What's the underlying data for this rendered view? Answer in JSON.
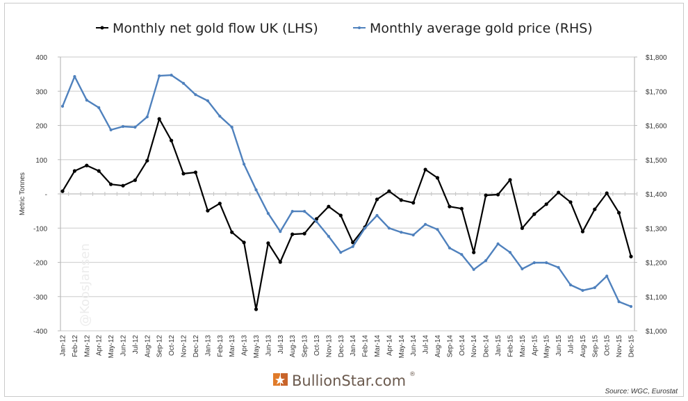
{
  "chart_data": {
    "type": "line",
    "title": "",
    "legend": [
      "Monthly net gold flow UK (LHS)",
      "Monthly average gold price (RHS)"
    ],
    "legend_position": "top",
    "ylabel": "Metric Tonnes",
    "xlabel": "",
    "ylim": [
      -400,
      400
    ],
    "y2lim": [
      1000,
      1800
    ],
    "yticks": [
      "400",
      "300",
      "200",
      "100",
      "-",
      "-100",
      "-200",
      "-300",
      "-400"
    ],
    "y2ticks": [
      "$1,800",
      "$1,700",
      "$1,600",
      "$1,500",
      "$1,400",
      "$1,300",
      "$1,200",
      "$1,100",
      "$1,000"
    ],
    "grid": true,
    "categories": [
      "Jan-12",
      "Feb-12",
      "Mar-12",
      "Apr-12",
      "May-12",
      "Jun-12",
      "Jul-12",
      "Aug-12",
      "Sep-12",
      "Oct-12",
      "Nov-12",
      "Dec-12",
      "Jan-13",
      "Feb-13",
      "Mar-13",
      "Apr-13",
      "May-13",
      "Jun-13",
      "Jul-13",
      "Aug-13",
      "Sep-13",
      "Oct-13",
      "Nov-13",
      "Dec-13",
      "Jan-14",
      "Feb-14",
      "Mar-14",
      "Apr-14",
      "May-14",
      "Jun-14",
      "Jul-14",
      "Aug-14",
      "Sep-14",
      "Oct-14",
      "Nov-14",
      "Dec-14",
      "Jan-15",
      "Feb-15",
      "Mar-15",
      "Apr-15",
      "May-15",
      "Jun-15",
      "Jul-15",
      "Aug-15",
      "Sep-15",
      "Oct-15",
      "Nov-15",
      "Dec-15"
    ],
    "series": [
      {
        "name": "Monthly net gold flow UK (LHS)",
        "axis": "left",
        "color": "#000000",
        "values": [
          8,
          67,
          83,
          67,
          28,
          24,
          40,
          97,
          219,
          156,
          59,
          63,
          -49,
          -28,
          -112,
          -142,
          -337,
          -144,
          -199,
          -118,
          -116,
          -73,
          -37,
          -63,
          -142,
          -97,
          -16,
          8,
          -18,
          -26,
          71,
          47,
          -37,
          -43,
          -171,
          -4,
          -2,
          41,
          -100,
          -59,
          -30,
          4,
          -24,
          -110,
          -45,
          2,
          -55,
          -183
        ]
      },
      {
        "name": "Monthly average gold price (RHS)",
        "axis": "right",
        "color": "#4f81bd",
        "values": [
          1656,
          1743,
          1674,
          1652,
          1587,
          1597,
          1595,
          1625,
          1745,
          1747,
          1723,
          1690,
          1672,
          1627,
          1595,
          1487,
          1412,
          1343,
          1290,
          1349,
          1349,
          1319,
          1276,
          1229,
          1246,
          1300,
          1337,
          1300,
          1288,
          1280,
          1311,
          1296,
          1242,
          1223,
          1179,
          1205,
          1254,
          1229,
          1181,
          1199,
          1199,
          1185,
          1134,
          1118,
          1126,
          1160,
          1085,
          1071
        ]
      }
    ]
  },
  "watermark": "@KoosJansen",
  "logo": {
    "text": "BullionStar.com",
    "mark": "®"
  },
  "source": "Source: WGC, Eurostat"
}
